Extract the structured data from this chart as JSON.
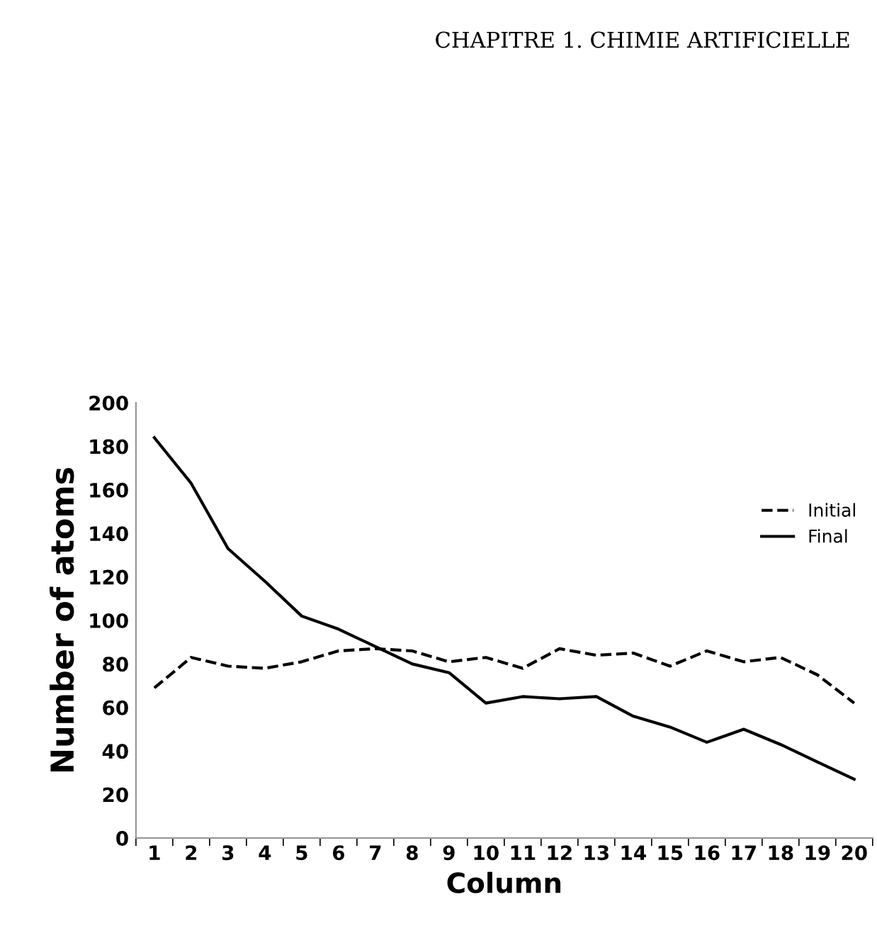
{
  "chart_data": {
    "type": "line",
    "xlabel": "Column",
    "ylabel": "Number of atoms",
    "categories": [
      "1",
      "2",
      "3",
      "4",
      "5",
      "6",
      "7",
      "8",
      "9",
      "10",
      "11",
      "12",
      "13",
      "14",
      "15",
      "16",
      "17",
      "18",
      "19",
      "20"
    ],
    "series": [
      {
        "name": "Initial",
        "color": "#000000",
        "line_style": "dashed",
        "values": [
          69,
          83,
          79,
          78,
          81,
          86,
          87,
          86,
          81,
          83,
          78,
          87,
          84,
          85,
          79,
          86,
          81,
          83,
          75,
          62
        ]
      },
      {
        "name": "Final",
        "color": "#000000",
        "line_style": "solid",
        "values": [
          184,
          163,
          133,
          118,
          102,
          96,
          88,
          80,
          76,
          62,
          65,
          64,
          65,
          56,
          51,
          44,
          50,
          43,
          35,
          27
        ]
      }
    ],
    "ylim": [
      0,
      200
    ],
    "yticks": [
      0,
      20,
      40,
      60,
      80,
      100,
      120,
      140,
      160,
      180,
      200
    ],
    "grid": false,
    "legend": "right",
    "marker": "none",
    "annotations": [
      "CHAPITRE 1. CHIMIE ARTIFICIELLE"
    ]
  }
}
